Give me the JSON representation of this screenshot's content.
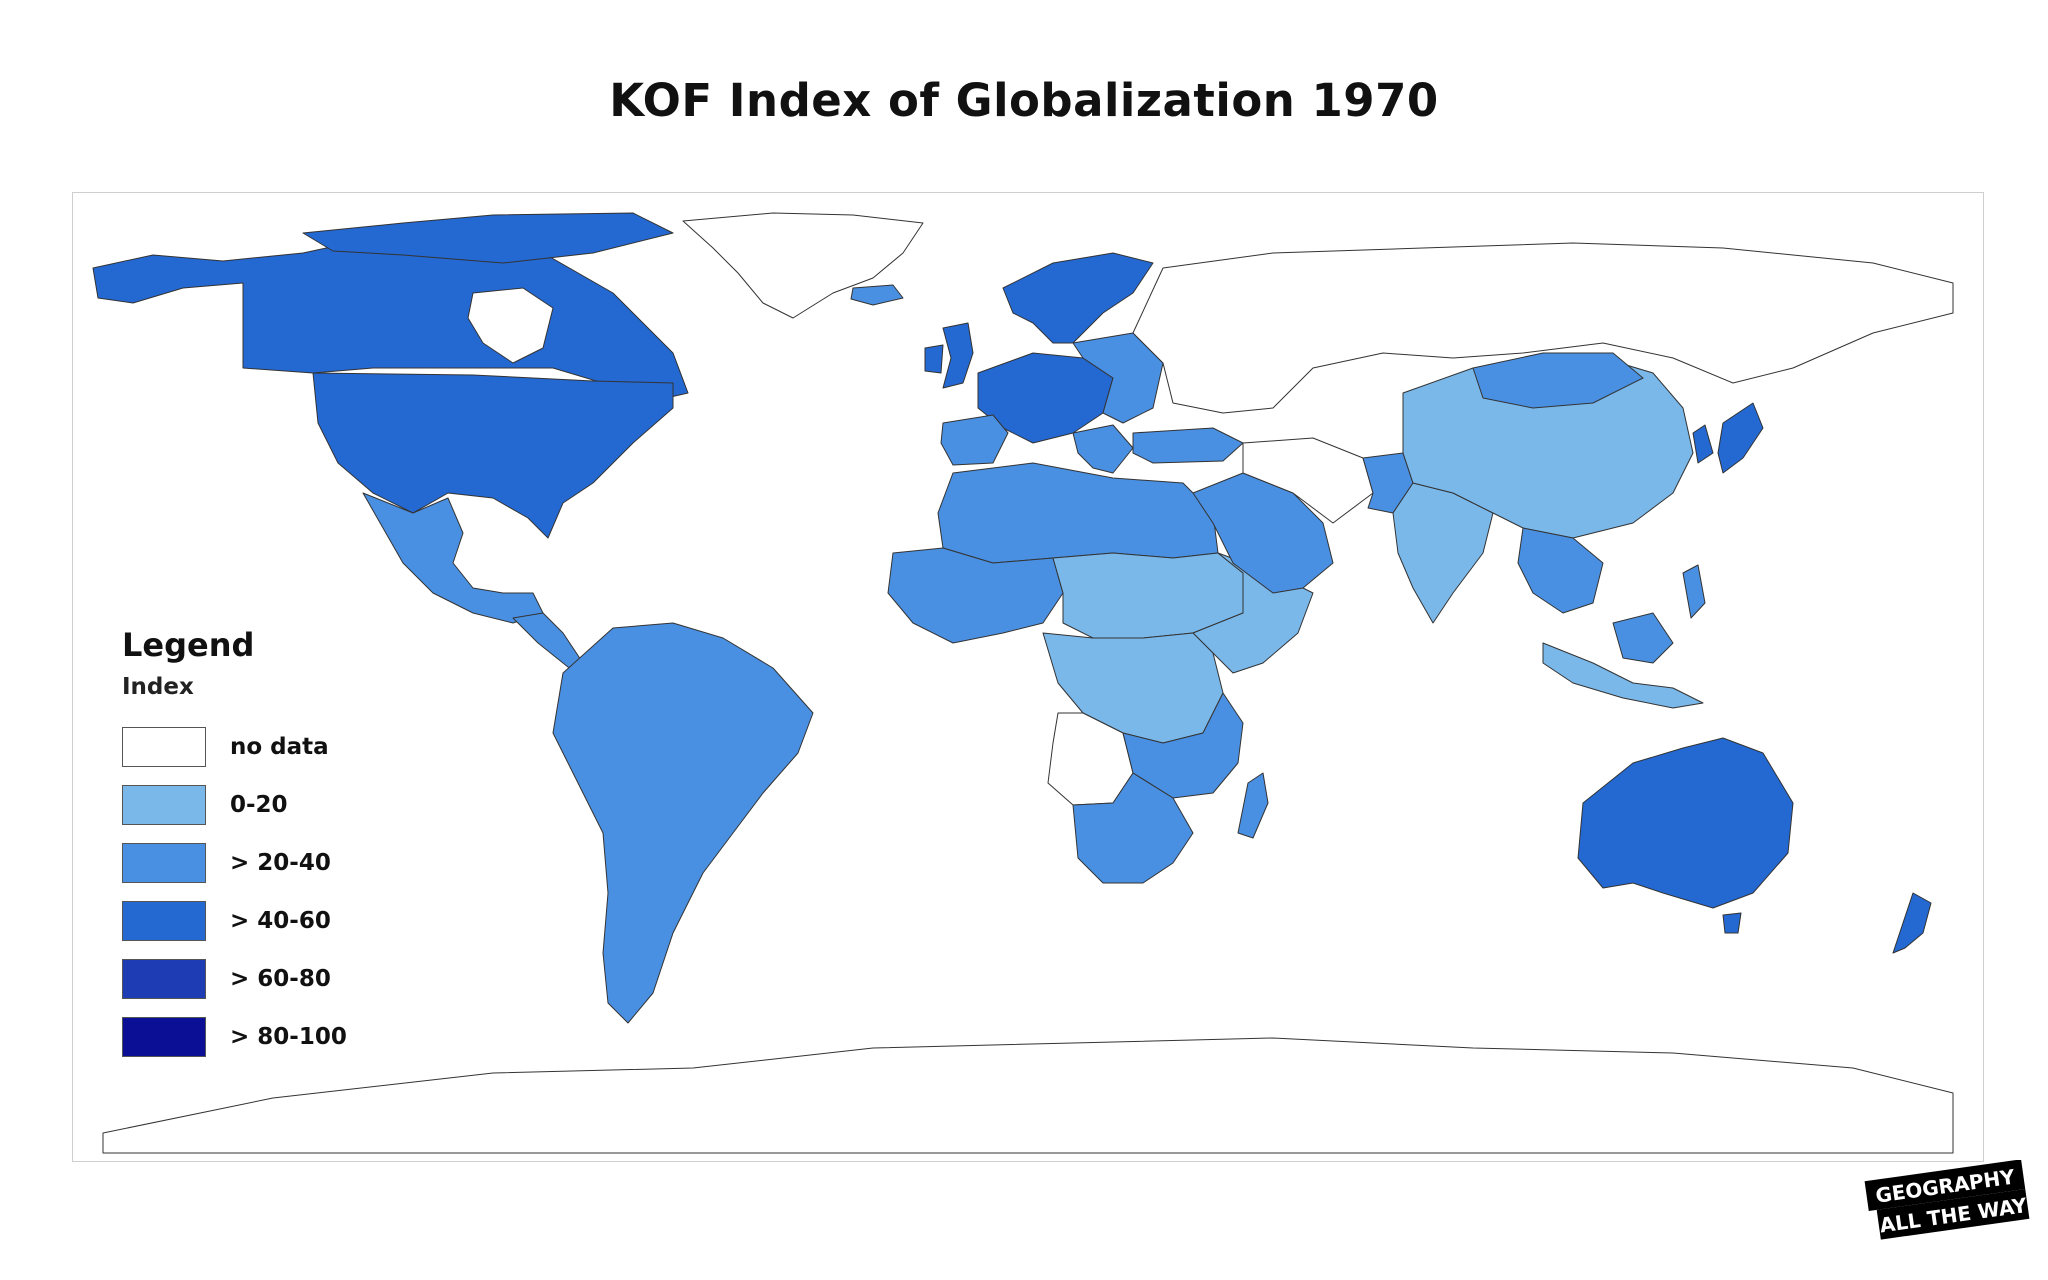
{
  "title": "KOF Index of Globalization 1970",
  "legend": {
    "title": "Legend",
    "subtitle": "Index",
    "items": [
      {
        "label": "no data",
        "color": "#ffffff"
      },
      {
        "label": "0-20",
        "color": "#7ab8ea"
      },
      {
        "label": "> 20-40",
        "color": "#4a90e2"
      },
      {
        "label": "> 40-60",
        "color": "#2468d2"
      },
      {
        "label": "> 60-80",
        "color": "#1e3db5"
      },
      {
        "label": "> 80-100",
        "color": "#0b0f96"
      }
    ]
  },
  "colors": {
    "land_outline": "#333333",
    "frame": "#cfcfcf"
  },
  "logo": {
    "text_line1": "GEOGRAPHY",
    "text_line2": "ALL THE WAY"
  }
}
